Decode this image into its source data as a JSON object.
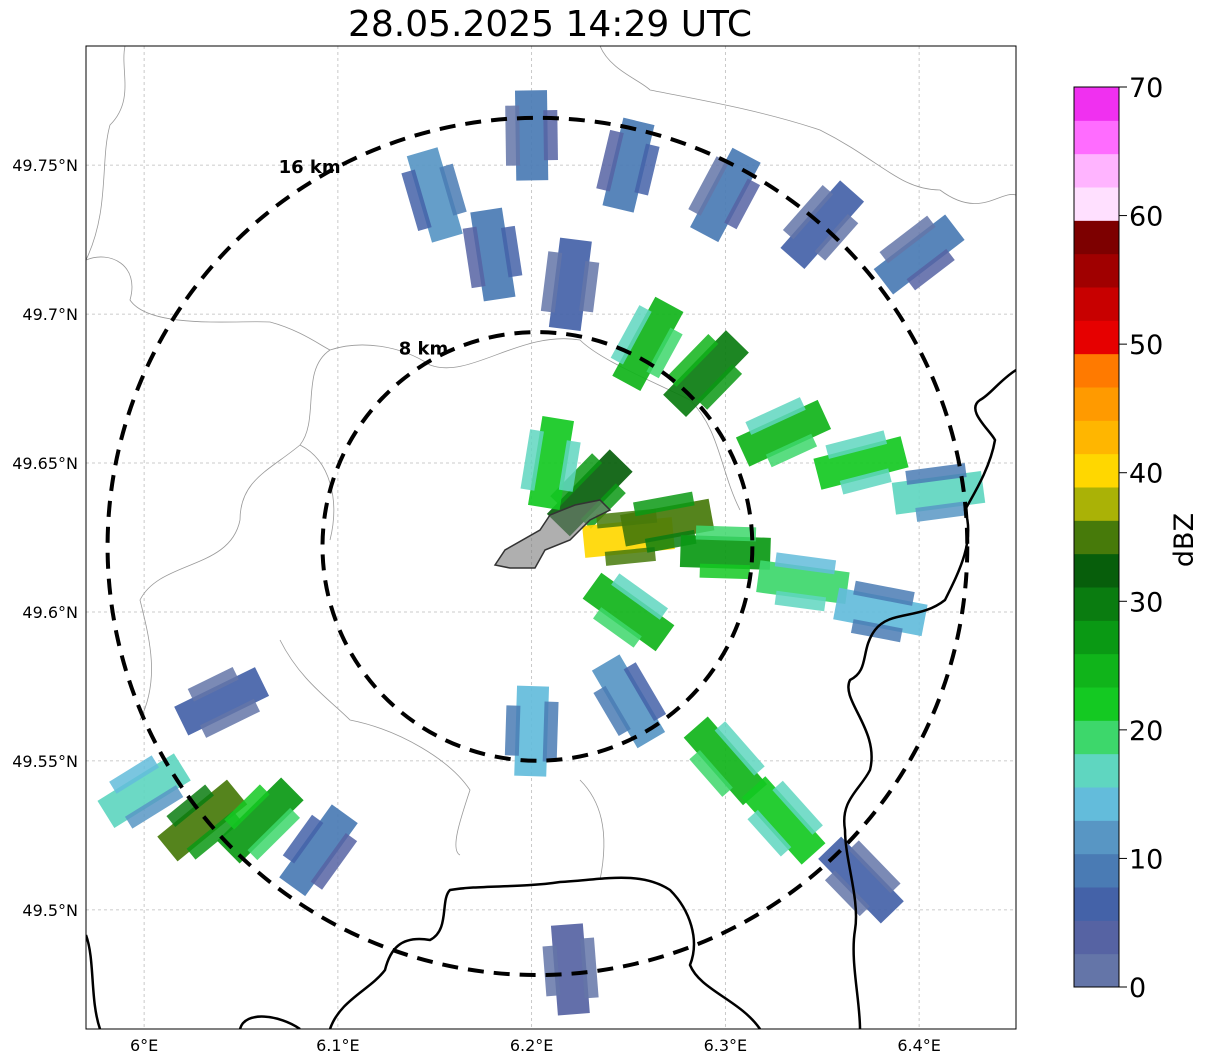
{
  "title": "28.05.2025 14:29 UTC",
  "map": {
    "lon_range": [
      5.97,
      6.45
    ],
    "lat_range": [
      49.46,
      49.79
    ],
    "x_ticks": [
      {
        "value": 6.0,
        "label": "6°E"
      },
      {
        "value": 6.1,
        "label": "6.1°E"
      },
      {
        "value": 6.2,
        "label": "6.2°E"
      },
      {
        "value": 6.3,
        "label": "6.3°E"
      },
      {
        "value": 6.4,
        "label": "6.4°E"
      }
    ],
    "y_ticks": [
      {
        "value": 49.75,
        "label": "49.75°N"
      },
      {
        "value": 49.7,
        "label": "49.7°N"
      },
      {
        "value": 49.65,
        "label": "49.65°N"
      },
      {
        "value": 49.6,
        "label": "49.6°N"
      },
      {
        "value": 49.55,
        "label": "49.55°N"
      },
      {
        "value": 49.5,
        "label": "49.5°N"
      }
    ],
    "grid": "dashed light gray",
    "center": {
      "lon": 6.203,
      "lat": 49.622
    },
    "range_rings": [
      {
        "label": "8 km",
        "radius_km": 8
      },
      {
        "label": "16 km",
        "radius_km": 16
      }
    ],
    "city_outline": "gray polygon near center (Luxembourg)",
    "reflectivity_cells": [
      {
        "lon": 6.2,
        "lat": 49.76,
        "dbz": 8
      },
      {
        "lon": 6.15,
        "lat": 49.74,
        "dbz": 12
      },
      {
        "lon": 6.25,
        "lat": 49.75,
        "dbz": 10
      },
      {
        "lon": 6.3,
        "lat": 49.74,
        "dbz": 8
      },
      {
        "lon": 6.35,
        "lat": 49.73,
        "dbz": 6
      },
      {
        "lon": 6.4,
        "lat": 49.72,
        "dbz": 8
      },
      {
        "lon": 6.18,
        "lat": 49.72,
        "dbz": 10
      },
      {
        "lon": 6.22,
        "lat": 49.71,
        "dbz": 6
      },
      {
        "lon": 6.26,
        "lat": 49.69,
        "dbz": 24
      },
      {
        "lon": 6.29,
        "lat": 49.68,
        "dbz": 30
      },
      {
        "lon": 6.33,
        "lat": 49.66,
        "dbz": 24
      },
      {
        "lon": 6.37,
        "lat": 49.65,
        "dbz": 22
      },
      {
        "lon": 6.41,
        "lat": 49.64,
        "dbz": 16
      },
      {
        "lon": 6.23,
        "lat": 49.64,
        "dbz": 32
      },
      {
        "lon": 6.25,
        "lat": 49.625,
        "dbz": 40
      },
      {
        "lon": 6.27,
        "lat": 49.63,
        "dbz": 34
      },
      {
        "lon": 6.3,
        "lat": 49.62,
        "dbz": 26
      },
      {
        "lon": 6.34,
        "lat": 49.61,
        "dbz": 20
      },
      {
        "lon": 6.38,
        "lat": 49.6,
        "dbz": 14
      },
      {
        "lon": 6.21,
        "lat": 49.65,
        "dbz": 22
      },
      {
        "lon": 6.25,
        "lat": 49.6,
        "dbz": 24
      },
      {
        "lon": 6.2,
        "lat": 49.56,
        "dbz": 14
      },
      {
        "lon": 6.25,
        "lat": 49.57,
        "dbz": 12
      },
      {
        "lon": 6.3,
        "lat": 49.55,
        "dbz": 24
      },
      {
        "lon": 6.33,
        "lat": 49.53,
        "dbz": 22
      },
      {
        "lon": 6.37,
        "lat": 49.51,
        "dbz": 6
      },
      {
        "lon": 6.22,
        "lat": 49.48,
        "dbz": 4
      },
      {
        "lon": 6.0,
        "lat": 49.54,
        "dbz": 18
      },
      {
        "lon": 6.03,
        "lat": 49.53,
        "dbz": 34
      },
      {
        "lon": 6.06,
        "lat": 49.53,
        "dbz": 26
      },
      {
        "lon": 6.09,
        "lat": 49.52,
        "dbz": 10
      },
      {
        "lon": 6.04,
        "lat": 49.57,
        "dbz": 6
      }
    ]
  },
  "colorbar": {
    "label": "dBZ",
    "range": [
      0,
      70
    ],
    "ticks": [
      {
        "value": 0,
        "label": "0"
      },
      {
        "value": 10,
        "label": "10"
      },
      {
        "value": 20,
        "label": "20"
      },
      {
        "value": 30,
        "label": "30"
      },
      {
        "value": 40,
        "label": "40"
      },
      {
        "value": 50,
        "label": "50"
      },
      {
        "value": 60,
        "label": "60"
      },
      {
        "value": 70,
        "label": "70"
      }
    ],
    "colors": [
      "#6475a8",
      "#5663a3",
      "#4462a8",
      "#4a7bb4",
      "#5896c4",
      "#63bcdb",
      "#5fd6c0",
      "#3dd76b",
      "#14c922",
      "#10b41a",
      "#0a9914",
      "#0a7c10",
      "#075e0b",
      "#477a0a",
      "#aab206",
      "#ffd700",
      "#ffb600",
      "#ff9a00",
      "#ff7a00",
      "#e60000",
      "#c80000",
      "#a00000",
      "#7d0000",
      "#ffe0ff",
      "#ffb4ff",
      "#ff6cff",
      "#f030f0"
    ]
  }
}
